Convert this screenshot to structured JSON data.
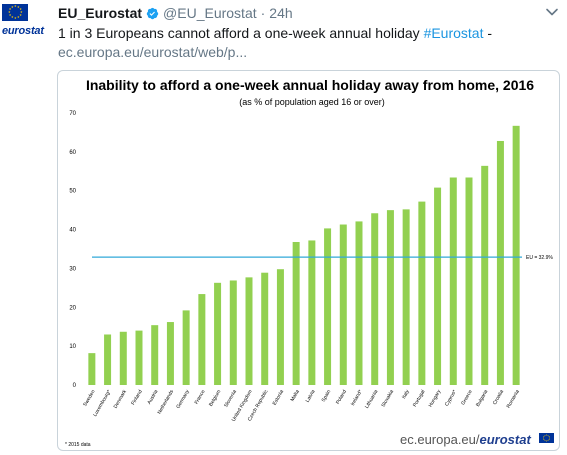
{
  "tweet": {
    "display_name": "EU_Eurostat",
    "handle": "@EU_Eurostat",
    "separator": "·",
    "time": "24h",
    "text_main": "1 in 3 Europeans cannot afford a one-week annual holiday ",
    "hashtag": "#Eurostat",
    "text_tail": " -",
    "link": "ec.europa.eu/eurostat/web/p...",
    "avatar_text": "eurostat",
    "icons": [
      "verified-icon",
      "chevron-down-icon",
      "eu-flag-icon"
    ]
  },
  "colors": {
    "bar": "#92d050",
    "eu_line": "#31a9d8",
    "brand_blue": "#003399",
    "verified": "#1da1f2"
  },
  "chart_data": {
    "type": "bar",
    "title": "Inability to afford a one-week annual holiday away from home, 2016",
    "subtitle": "(as % of population aged 16 or over)",
    "categories": [
      "Sweden",
      "Luxembourg*",
      "Denmark",
      "Finland",
      "Austria",
      "Netherlands",
      "Germany",
      "France",
      "Belgium",
      "Slovenia",
      "United Kingdom",
      "Czech Republic",
      "Estonia",
      "Malta",
      "Latvia",
      "Spain",
      "Poland",
      "Ireland*",
      "Lithuania",
      "Slovakia",
      "Italy",
      "Portugal",
      "Hungary",
      "Cyprus*",
      "Greece",
      "Bulgaria",
      "Croatia",
      "Romania"
    ],
    "values": [
      8.2,
      13.0,
      13.7,
      14.0,
      15.4,
      16.2,
      19.2,
      23.4,
      26.3,
      26.9,
      27.7,
      28.9,
      29.8,
      36.8,
      37.2,
      40.3,
      41.3,
      42.1,
      44.2,
      45.0,
      45.2,
      47.2,
      50.8,
      53.4,
      53.4,
      56.4,
      62.8,
      66.7
    ],
    "ylim": [
      0,
      70
    ],
    "yticks": [
      0,
      10,
      20,
      30,
      40,
      50,
      60,
      70
    ],
    "reference_line": {
      "value": 32.9,
      "label": "EU = 32.9%"
    },
    "footnote": "* 2015 data",
    "source": {
      "prefix": "ec.europa.eu/",
      "brand": "eurostat"
    },
    "grid": false,
    "legend": "none"
  }
}
